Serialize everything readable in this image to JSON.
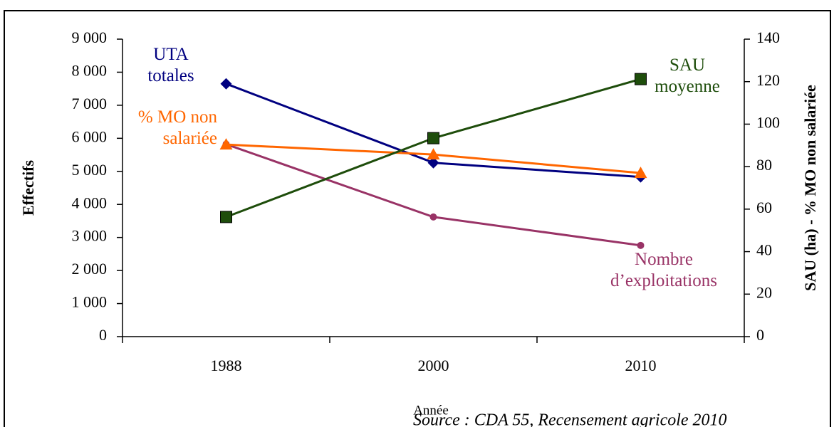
{
  "chart_data": {
    "type": "line",
    "x_label": "Année",
    "y_label": "Effectifs",
    "y2_label": "SAU (ha) - % MO non salariée",
    "source": "Source : CDA 55, Recensement agricole 2010",
    "categories": [
      "1988",
      "2000",
      "2010"
    ],
    "ylim": [
      0,
      9000
    ],
    "yticks": [
      0,
      {
        "value": 1000,
        "label": "1 000"
      },
      {
        "value": 2000,
        "label": "2 000"
      },
      {
        "value": 3000,
        "label": "3 000"
      },
      {
        "value": 4000,
        "label": "4 000"
      },
      {
        "value": 5000,
        "label": "5 000"
      },
      {
        "value": 6000,
        "label": "6 000"
      },
      {
        "value": 7000,
        "label": "7 000"
      },
      {
        "value": 8000,
        "label": "8 000"
      },
      {
        "value": 9000,
        "label": "9 000"
      }
    ],
    "y2lim": [
      0,
      140
    ],
    "y2ticks": [
      0,
      20,
      40,
      60,
      80,
      100,
      120,
      140
    ],
    "series": [
      {
        "name": "UTA totales",
        "color": "#000080",
        "marker": "diamond",
        "values": [
          7650,
          5260,
          4830
        ]
      },
      {
        "name": "Nombre d’exploitations",
        "color": "#993366",
        "marker": "circle",
        "values": [
          5820,
          3620,
          2760
        ]
      },
      {
        "name": "% MO non salariée",
        "color": "#ff6600",
        "marker": "triangle",
        "axis": "y2",
        "values": [
          90.4,
          85.7,
          77
        ]
      },
      {
        "name": "SAU moyenne",
        "color": "#1e4d0b",
        "marker": "square",
        "axis": "y2",
        "values": [
          56.3,
          93.4,
          121.2
        ]
      }
    ]
  }
}
